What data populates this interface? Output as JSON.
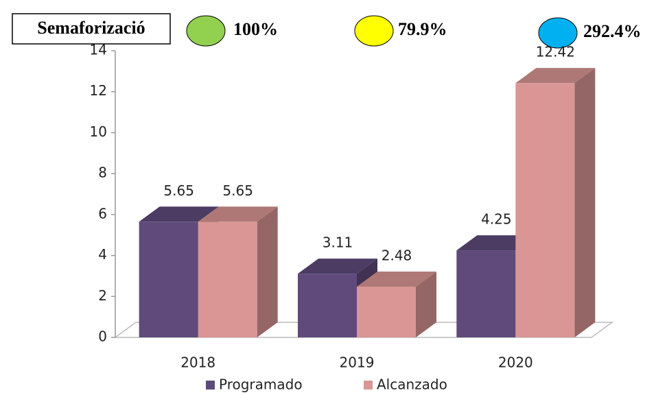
{
  "chart_data": {
    "type": "bar",
    "categories": [
      "2018",
      "2019",
      "2020"
    ],
    "series": [
      {
        "name": "Programado",
        "color": "#5f4a7b",
        "values": [
          5.65,
          3.11,
          4.25
        ]
      },
      {
        "name": "Alcanzado",
        "color": "#d99694",
        "values": [
          5.65,
          2.48,
          12.42
        ]
      }
    ],
    "ylim": [
      0,
      14
    ],
    "yticks": [
      0,
      2,
      4,
      6,
      8,
      10,
      12,
      14
    ],
    "grid": false,
    "legend": "bottom"
  },
  "semaforo": {
    "label": "Semaforizació",
    "items": [
      {
        "color": "#92d050",
        "label": "100%"
      },
      {
        "color": "#ffff00",
        "label": "79.9%"
      },
      {
        "color": "#00b0f0",
        "label": "292.4%"
      }
    ]
  }
}
